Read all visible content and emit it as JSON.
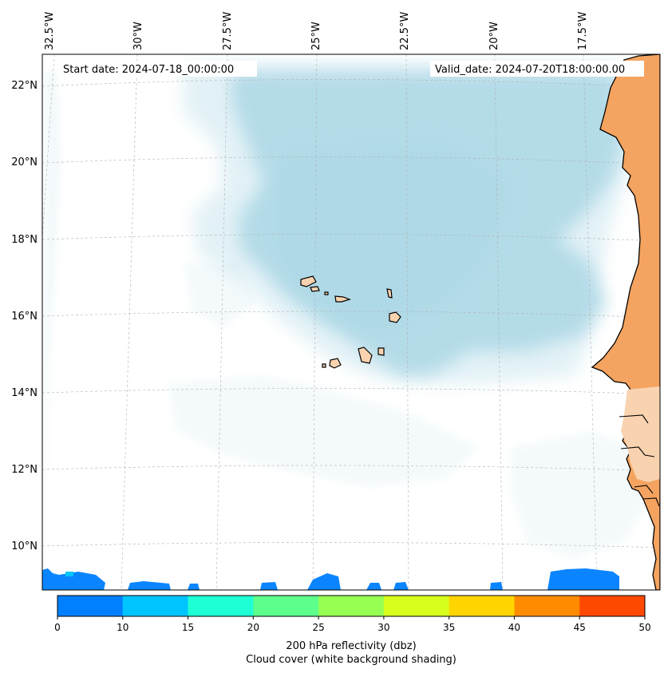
{
  "annotations": {
    "start_date": "Start date: 2024-07-18_00:00:00",
    "valid_date": "Valid_date: 2024-07-20T18:00:00.00"
  },
  "longitude_labels": [
    "32.5°W",
    "30°W",
    "27.5°W",
    "25°W",
    "22.5°W",
    "20°W",
    "17.5°W"
  ],
  "latitude_labels": [
    "22°N",
    "20°N",
    "18°N",
    "16°N",
    "14°N",
    "12°N",
    "10°N"
  ],
  "colorbar": {
    "ticks": [
      "0",
      "10",
      "15",
      "20",
      "25",
      "30",
      "35",
      "40",
      "45",
      "50"
    ],
    "colors": [
      "#0080ff",
      "#00c4ff",
      "#1effd6",
      "#5cff8c",
      "#96ff52",
      "#d6ff1e",
      "#ffd500",
      "#ff8c00",
      "#ff4800"
    ],
    "label_line1": "200 hPa reflectivity (dbz)",
    "label_line2": "Cloud cover (white background shading)"
  },
  "palette": {
    "cloud": "#add8e6",
    "land": "#f4a460",
    "land_light": "#f9d3b0",
    "grid": "#b0b0b0",
    "reflectivity_low": "#0a85ff"
  }
}
